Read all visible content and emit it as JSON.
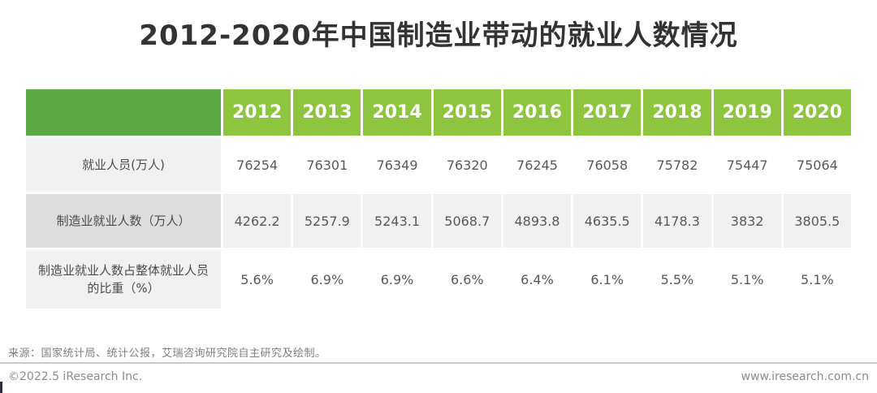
{
  "title": "2012-2020年中国制造业带动的就业人数情况",
  "table": {
    "years": [
      "2012",
      "2013",
      "2014",
      "2015",
      "2016",
      "2017",
      "2018",
      "2019",
      "2020"
    ],
    "rows": [
      {
        "label": "就业人员(万人)",
        "values": [
          "76254",
          "76301",
          "76349",
          "76320",
          "76245",
          "76058",
          "75782",
          "75447",
          "75064"
        ]
      },
      {
        "label": "制造业就业人数（万人）",
        "values": [
          "4262.2",
          "5257.9",
          "5243.1",
          "5068.7",
          "4893.8",
          "4635.5",
          "4178.3",
          "3832",
          "3805.5"
        ]
      },
      {
        "label": "制造业就业人数占整体就业人员的比重（%）",
        "values": [
          "5.6%",
          "6.9%",
          "6.9%",
          "6.6%",
          "6.4%",
          "6.1%",
          "5.5%",
          "5.1%",
          "5.1%"
        ]
      }
    ]
  },
  "footer": {
    "source": "来源：国家统计局、统计公报，艾瑞咨询研究院自主研究及绘制。",
    "copyright": "©2022.5 iResearch Inc.",
    "website": "www.iresearch.com.cn"
  },
  "colors": {
    "header_corner_green": "#5CA845",
    "header_year_green": "#8DC53F",
    "row_label_light_gray": "#F1F1F1",
    "row_label_dark_gray": "#DDDDDD",
    "shaded_cell_gray": "#F1F1F1"
  },
  "chart_data": {
    "type": "table",
    "title": "2012-2020年中国制造业带动的就业人数情况",
    "categories": [
      "2012",
      "2013",
      "2014",
      "2015",
      "2016",
      "2017",
      "2018",
      "2019",
      "2020"
    ],
    "series": [
      {
        "name": "就业人员(万人)",
        "values": [
          76254,
          76301,
          76349,
          76320,
          76245,
          76058,
          75782,
          75447,
          75064
        ]
      },
      {
        "name": "制造业就业人数（万人）",
        "values": [
          4262.2,
          5257.9,
          5243.1,
          5068.7,
          4893.8,
          4635.5,
          4178.3,
          3832,
          3805.5
        ]
      },
      {
        "name": "制造业就业人数占整体就业人员的比重（%）",
        "values": [
          5.6,
          6.9,
          6.9,
          6.6,
          6.4,
          6.1,
          5.5,
          5.1,
          5.1
        ]
      }
    ],
    "source_note": "来源：国家统计局、统计公报，艾瑞咨询研究院自主研究及绘制。",
    "legend_position": "none",
    "grid": false
  }
}
